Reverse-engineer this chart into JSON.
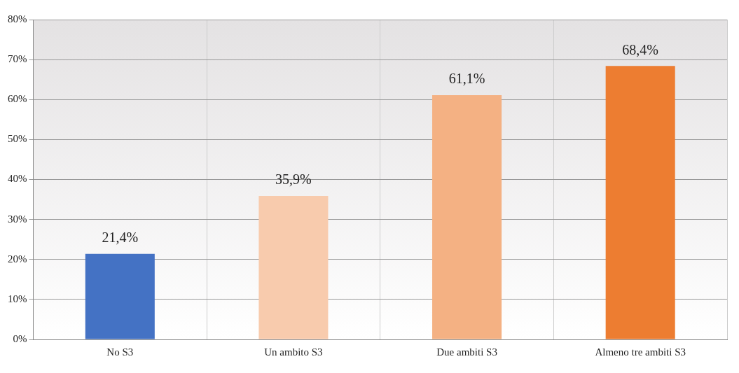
{
  "chart_data": {
    "type": "bar",
    "categories": [
      "No S3",
      "Un ambito S3",
      "Due ambiti S3",
      "Almeno tre ambiti S3"
    ],
    "values": [
      21.4,
      35.9,
      61.1,
      68.4
    ],
    "colors": [
      "#4472c4",
      "#f8cbad",
      "#f4b183",
      "#ed7d31"
    ],
    "value_labels": [
      "21,4%",
      "35,9%",
      "61,1%",
      "68,4%"
    ],
    "ylim": [
      0,
      80
    ],
    "yticks": [
      {
        "value": 0,
        "label": "0%"
      },
      {
        "value": 10,
        "label": "10%"
      },
      {
        "value": 20,
        "label": "20%"
      },
      {
        "value": 30,
        "label": "30%"
      },
      {
        "value": 40,
        "label": "40%"
      },
      {
        "value": 50,
        "label": "50%"
      },
      {
        "value": 60,
        "label": "60%"
      },
      {
        "value": 70,
        "label": "70%"
      },
      {
        "value": 80,
        "label": "80%"
      }
    ],
    "grid": true,
    "legend": false
  }
}
